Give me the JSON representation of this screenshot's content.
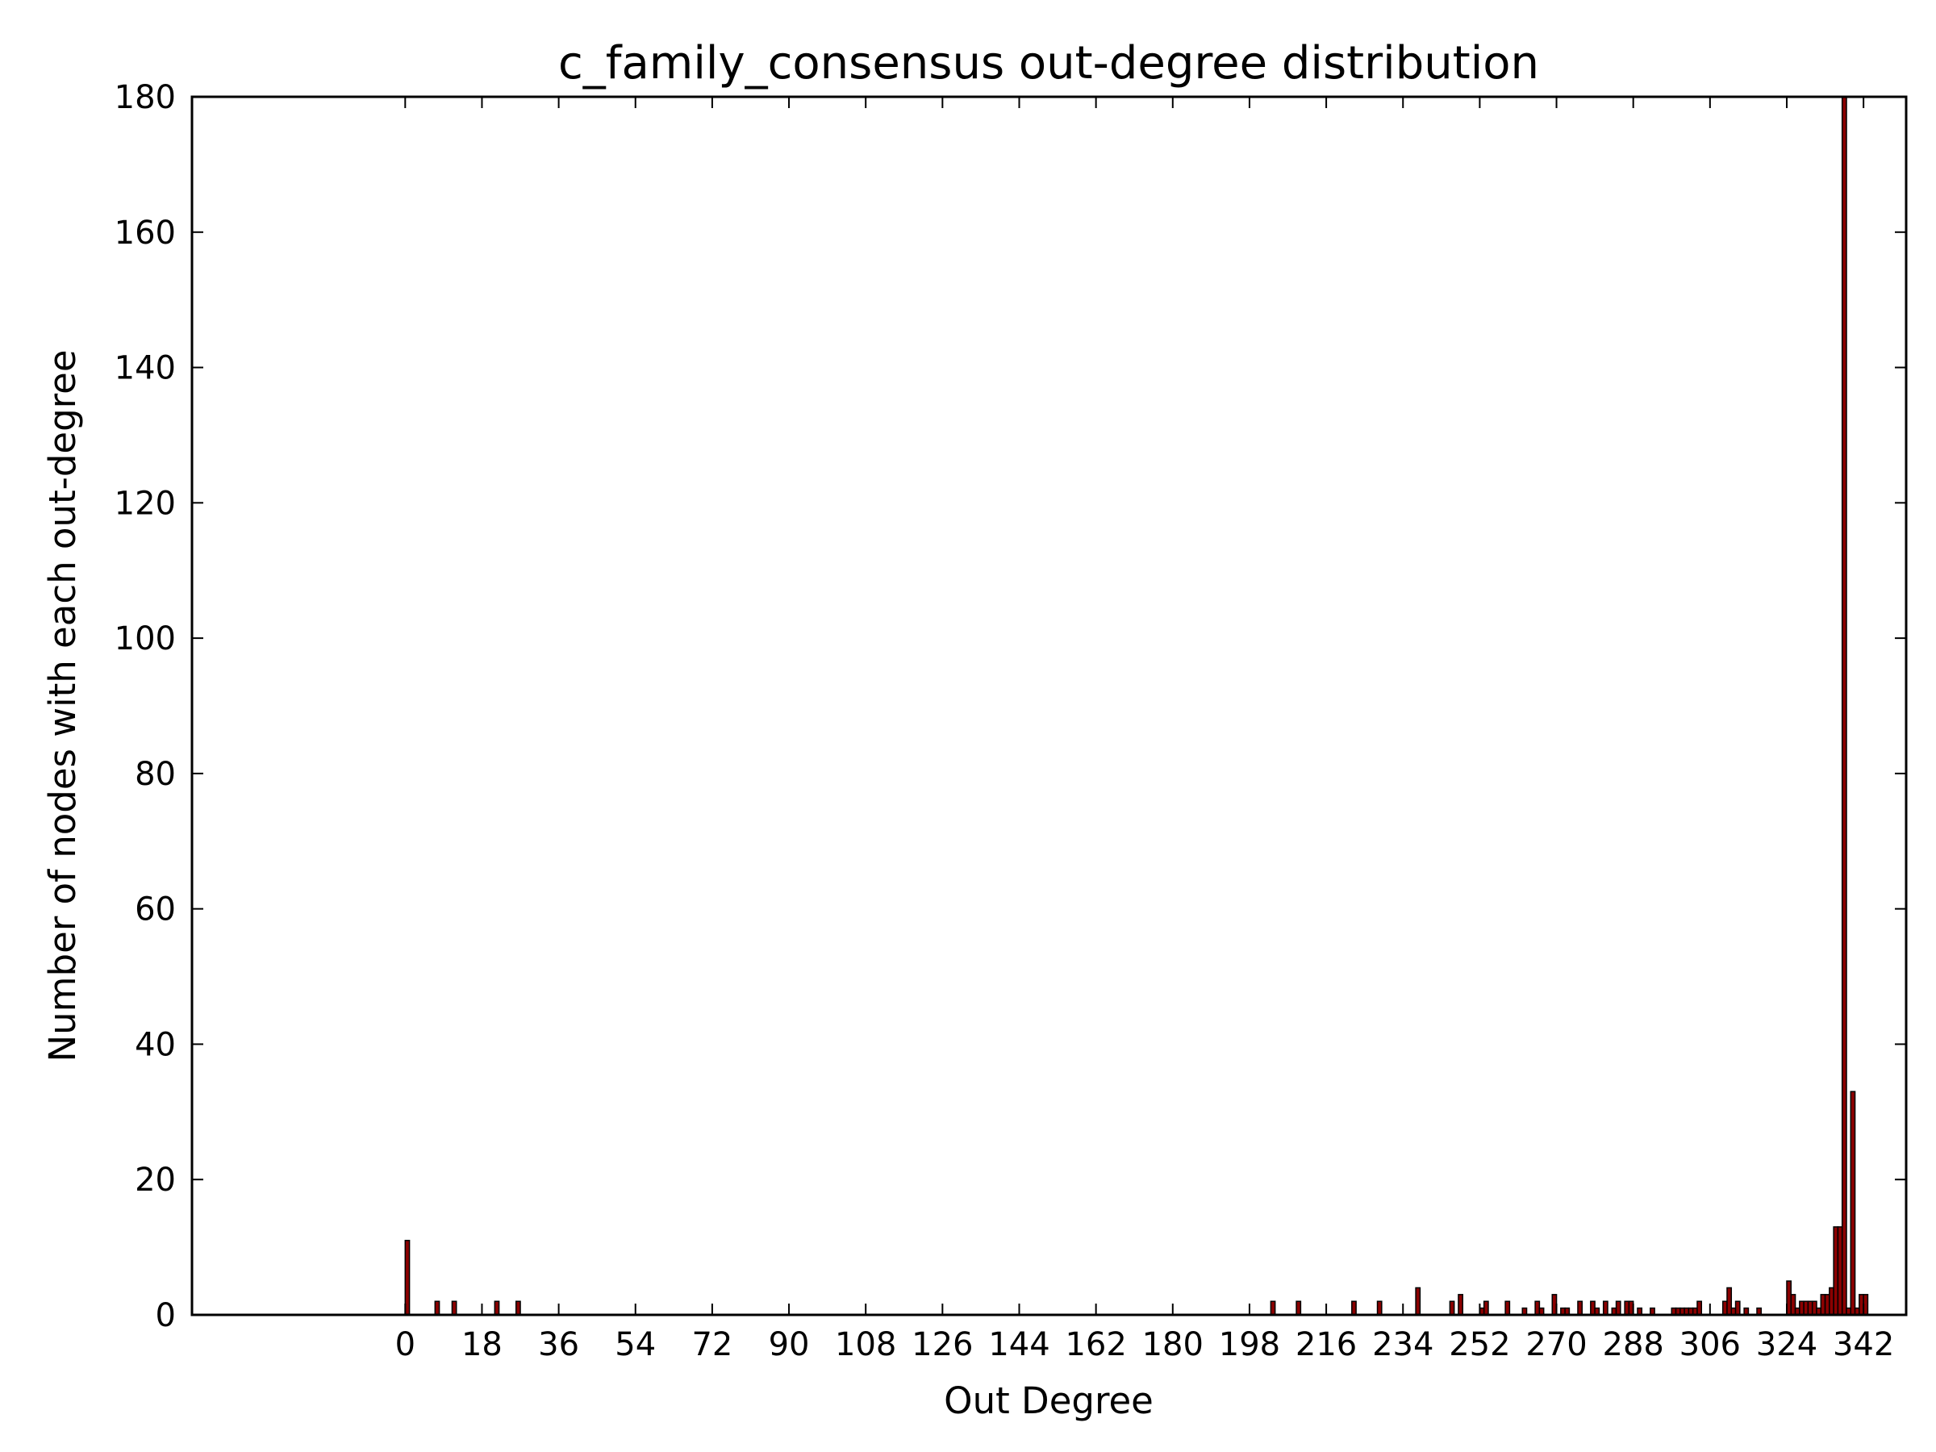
{
  "chart_data": {
    "type": "bar",
    "title": "c_family_consensus out-degree distribution",
    "xlabel": "Out Degree",
    "ylabel": "Number of nodes with each out-degree",
    "xlim": [
      -50,
      352
    ],
    "ylim": [
      0,
      180
    ],
    "xticks": [
      0,
      18,
      36,
      54,
      72,
      90,
      108,
      126,
      144,
      162,
      180,
      198,
      216,
      234,
      252,
      270,
      288,
      306,
      324,
      342
    ],
    "yticks": [
      0,
      20,
      40,
      60,
      80,
      100,
      120,
      140,
      160,
      180
    ],
    "grid": false,
    "bar_color": "#8b0000",
    "edge_color": "#000000",
    "bar_width": 1,
    "x": [
      0,
      7,
      11,
      21,
      26,
      203,
      209,
      222,
      228,
      237,
      245,
      247,
      252,
      253,
      258,
      262,
      265,
      266,
      269,
      271,
      272,
      275,
      278,
      279,
      281,
      283,
      284,
      286,
      287,
      289,
      292,
      297,
      298,
      299,
      300,
      301,
      302,
      303,
      309,
      310,
      311,
      312,
      314,
      317,
      324,
      325,
      326,
      327,
      328,
      329,
      330,
      331,
      332,
      333,
      334,
      335,
      336,
      337,
      338,
      339,
      340,
      341,
      342
    ],
    "values": [
      11,
      2,
      2,
      2,
      2,
      2,
      2,
      2,
      2,
      4,
      2,
      3,
      1,
      2,
      2,
      1,
      2,
      1,
      3,
      1,
      1,
      2,
      2,
      1,
      2,
      1,
      2,
      2,
      2,
      1,
      1,
      1,
      1,
      1,
      1,
      1,
      1,
      2,
      2,
      4,
      1,
      2,
      1,
      1,
      5,
      3,
      1,
      2,
      2,
      2,
      2,
      1,
      3,
      3,
      4,
      13,
      13,
      180,
      1,
      33,
      1,
      3,
      3
    ]
  }
}
